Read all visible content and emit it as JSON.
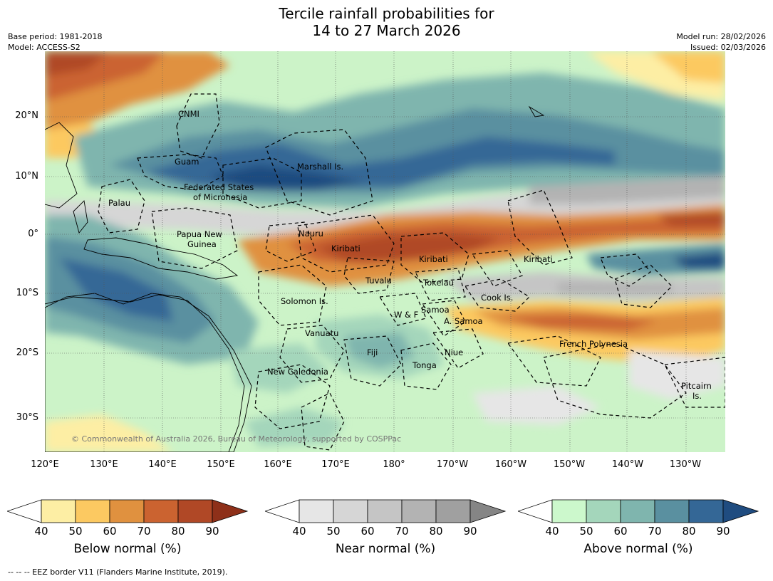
{
  "title_line1": "Tercile rainfall probabilities for",
  "title_line2": "14 to 27 March 2026",
  "base_period": "Base period: 1981-2018",
  "model": "Model: ACCESS-S2",
  "model_run": "Model run: 28/02/2026",
  "issued": "Issued: 02/03/2026",
  "latitude_labels": [
    "20°N",
    "10°N",
    "0°",
    "10°S",
    "20°S",
    "30°S"
  ],
  "longitude_labels": [
    "120°E",
    "130°E",
    "140°E",
    "150°E",
    "160°E",
    "170°E",
    "180°",
    "170°W",
    "160°W",
    "150°W",
    "140°W",
    "130°W"
  ],
  "regions": [
    {
      "id": "cnmi",
      "name": "CNMI"
    },
    {
      "id": "guam",
      "name": "Guam"
    },
    {
      "id": "marshall",
      "name": "Marshall Is."
    },
    {
      "id": "fsm1",
      "name": "Federated States"
    },
    {
      "id": "fsm2",
      "name": "of Micronesia"
    },
    {
      "id": "palau",
      "name": "Palau"
    },
    {
      "id": "png1",
      "name": "Papua New"
    },
    {
      "id": "png2",
      "name": "Guinea"
    },
    {
      "id": "nauru",
      "name": "Nauru"
    },
    {
      "id": "kiribati-w",
      "name": "Kiribati"
    },
    {
      "id": "kiribati-c",
      "name": "Kiribati"
    },
    {
      "id": "kiribati-e",
      "name": "Kiribati"
    },
    {
      "id": "tuvalu",
      "name": "Tuvalu"
    },
    {
      "id": "tokelau",
      "name": "Tokelau"
    },
    {
      "id": "cook",
      "name": "Cook Is."
    },
    {
      "id": "solomon",
      "name": "Solomon Is."
    },
    {
      "id": "wf",
      "name": "W & F"
    },
    {
      "id": "samoa",
      "name": "Samoa"
    },
    {
      "id": "asamoa",
      "name": "A. Samoa"
    },
    {
      "id": "vanuatu",
      "name": "Vanuatu"
    },
    {
      "id": "fiji",
      "name": "Fiji"
    },
    {
      "id": "niue",
      "name": "Niue"
    },
    {
      "id": "french-polynesia",
      "name": "French Polynesia"
    },
    {
      "id": "tonga",
      "name": "Tonga"
    },
    {
      "id": "new-caledonia",
      "name": "New Caledonia"
    },
    {
      "id": "pitcairn1",
      "name": "Pitcairn"
    },
    {
      "id": "pitcairn2",
      "name": "Is."
    }
  ],
  "credit": "© Commonwealth of Australia 2026, Bureau of Meteorology, supported by COSPPac",
  "colorbars": [
    {
      "id": "below",
      "label": "Below normal (%)",
      "ticks": [
        "40",
        "50",
        "60",
        "70",
        "80",
        "90"
      ],
      "colors": [
        "#ffffff",
        "#fdeea4",
        "#fcc961",
        "#e0913f",
        "#cb6330",
        "#b04826",
        "#8e3019"
      ]
    },
    {
      "id": "near",
      "label": "Near normal (%)",
      "ticks": [
        "40",
        "50",
        "60",
        "70",
        "80",
        "90"
      ],
      "colors": [
        "#ffffff",
        "#e6e6e6",
        "#d6d6d6",
        "#c5c5c5",
        "#b3b3b3",
        "#a0a0a0",
        "#858585"
      ]
    },
    {
      "id": "above",
      "label": "Above normal (%)",
      "ticks": [
        "40",
        "50",
        "60",
        "70",
        "80",
        "90"
      ],
      "colors": [
        "#ffffff",
        "#ccf8cc",
        "#a4d6bb",
        "#7fb5ae",
        "#5a90a0",
        "#346796",
        "#1f4c80"
      ]
    }
  ],
  "footer": "--  --  -- EEZ border V11 (Flanders Marine Institute, 2019)."
}
